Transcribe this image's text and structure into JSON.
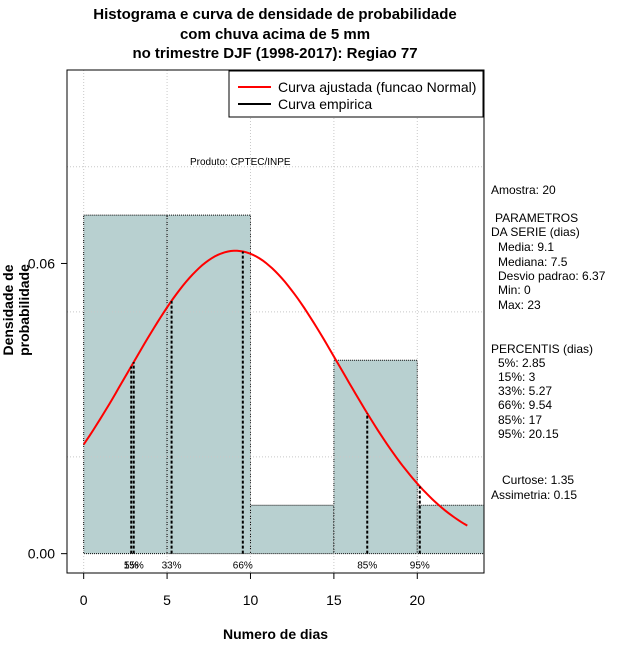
{
  "chart_data": {
    "type": "histogram",
    "title": [
      "Histograma e curva de densidade de probabilidade",
      "com chuva acima de 5 mm",
      "no trimestre DJF (1998-2017): Regiao 77"
    ],
    "xlabel": "Numero de dias",
    "ylabel": "Densidade de probabilidade",
    "xlim": [
      -1,
      24
    ],
    "ylim": [
      -0.004,
      0.1
    ],
    "x_ticks": [
      0,
      5,
      10,
      15,
      20
    ],
    "x_tick_labels": [
      "0",
      "5",
      "10",
      "15",
      "20"
    ],
    "y_ticks": [
      0.0,
      0.06
    ],
    "y_tick_labels": [
      "0.00",
      "0.06"
    ],
    "bins": [
      {
        "start": 0,
        "end": 5,
        "density": 0.07
      },
      {
        "start": 5,
        "end": 10,
        "density": 0.07
      },
      {
        "start": 10,
        "end": 15,
        "density": 0.01
      },
      {
        "start": 15,
        "end": 20,
        "density": 0.04
      },
      {
        "start": 20,
        "end": 25,
        "density": 0.01
      }
    ],
    "fitted_curve": {
      "name": "Curva ajustada (funcao Normal)",
      "mean": 9.1,
      "sd": 6.37,
      "x_from": 0,
      "x_to": 23,
      "color": "#ff0000"
    },
    "empirical_curve": {
      "name": "Curva empirica",
      "color": "#000000"
    },
    "percentile_lines": [
      {
        "label": "5%",
        "x": 2.85
      },
      {
        "label": "15%",
        "x": 3
      },
      {
        "label": "33%",
        "x": 5.27
      },
      {
        "label": "66%",
        "x": 9.54
      },
      {
        "label": "85%",
        "x": 17
      },
      {
        "label": "95%",
        "x": 20.15
      }
    ],
    "legend": {
      "placement": "top-right",
      "entries": [
        "Curva ajustada (funcao Normal)",
        "Curva empirica"
      ]
    },
    "grid": true,
    "bar_color": "#b8d0d0"
  },
  "product_text": "Produto: CPTEC/INPE",
  "side_panel": {
    "amostra": "Amostra: 20",
    "params_header_1": "PARAMETROS",
    "params_header_2": "DA SERIE (dias)",
    "media": "Media: 9.1",
    "mediana": "Mediana: 7.5",
    "desvio": "Desvio padrao: 6.37",
    "min": "Min: 0",
    "max": "Max: 23",
    "percentis_header": "PERCENTIS (dias)",
    "p5": "5%: 2.85",
    "p15": "15%: 3",
    "p33": "33%: 5.27",
    "p66": "66%: 9.54",
    "p85": "85%: 17",
    "p95": "95%: 20.15",
    "curtose": "Curtose: 1.35",
    "assimetria": "Assimetria: 0.15"
  }
}
